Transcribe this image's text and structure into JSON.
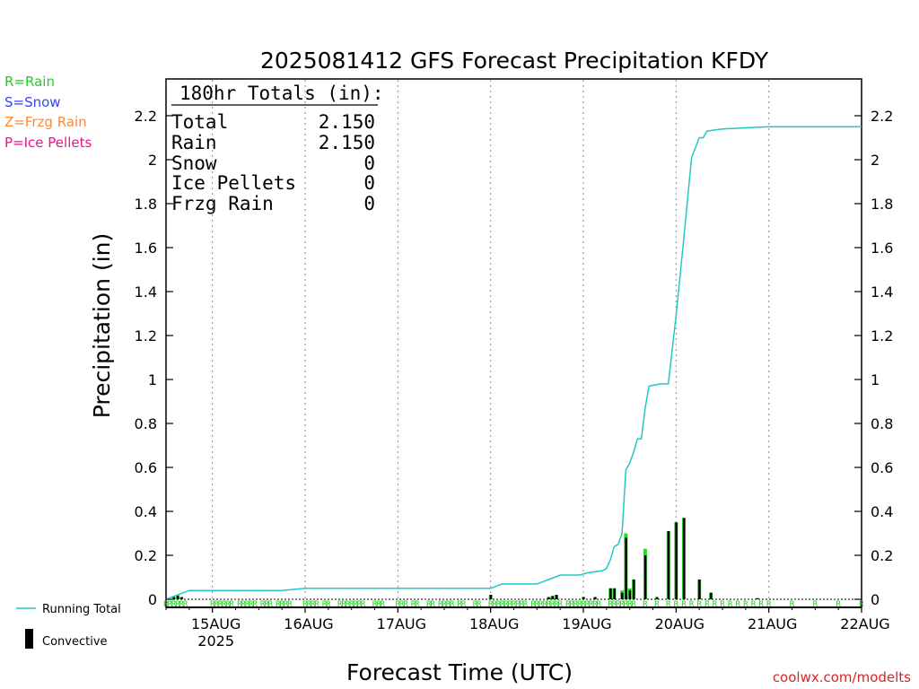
{
  "chart_data": {
    "type": "bar",
    "title": "2025081412 GFS Forecast Precipitation KFDY",
    "ylabel": "Precipitation (in)",
    "xlabel": "Forecast Time (UTC)",
    "ylim": [
      0,
      2.35
    ],
    "yticks": [
      0,
      0.2,
      0.4,
      0.6,
      0.8,
      1,
      1.2,
      1.4,
      1.6,
      1.8,
      2,
      2.2
    ],
    "ytick_labels": [
      "0",
      "0.2",
      "0.4",
      "0.6",
      "0.8",
      "1",
      "1.2",
      "1.4",
      "1.6",
      "1.8",
      "2",
      "2.2"
    ],
    "xlim": [
      "2025-08-14T12Z",
      "2025-08-22T00Z"
    ],
    "xticks": [
      {
        "date": "2025-08-15T00Z",
        "label": "15AUG",
        "sublabel": "2025"
      },
      {
        "date": "2025-08-16T00Z",
        "label": "16AUG"
      },
      {
        "date": "2025-08-17T00Z",
        "label": "17AUG"
      },
      {
        "date": "2025-08-18T00Z",
        "label": "18AUG"
      },
      {
        "date": "2025-08-19T00Z",
        "label": "19AUG"
      },
      {
        "date": "2025-08-20T00Z",
        "label": "20AUG"
      },
      {
        "date": "2025-08-21T00Z",
        "label": "21AUG"
      },
      {
        "date": "2025-08-22T00Z",
        "label": "22AUG"
      }
    ],
    "totals_box": {
      "header": "180hr Totals (in):",
      "rows": [
        {
          "label": "Total",
          "value": "2.150"
        },
        {
          "label": "Rain",
          "value": "2.150"
        },
        {
          "label": "Snow",
          "value": "0"
        },
        {
          "label": "Ice Pellets",
          "value": "0"
        },
        {
          "label": "Frzg Rain",
          "value": "0"
        }
      ]
    },
    "precip_type_legend": [
      {
        "text": "R=Rain",
        "color": "#22cc22"
      },
      {
        "text": "S=Snow",
        "color": "#3344ff"
      },
      {
        "text": "Z=Frzg Rain",
        "color": "#ff8833"
      },
      {
        "text": "P=Ice Pellets",
        "color": "#ee1188"
      }
    ],
    "series_legend": [
      {
        "text": "Running Total",
        "color": "#22c8c8",
        "kind": "line"
      },
      {
        "text": "Convective",
        "color": "#000000",
        "kind": "bar"
      }
    ],
    "credit": "coolwx.com/modelts",
    "colors": {
      "running_total": "#22c8c8",
      "rain_bar": "#22dd22",
      "convective_bar": "#000000",
      "type_marker": "#22cc22"
    },
    "running_total": [
      [
        "2025-08-14T12Z",
        0.0
      ],
      [
        "2025-08-14T15Z",
        0.02
      ],
      [
        "2025-08-14T18Z",
        0.04
      ],
      [
        "2025-08-15T18Z",
        0.04
      ],
      [
        "2025-08-16T00Z",
        0.05
      ],
      [
        "2025-08-17T00Z",
        0.05
      ],
      [
        "2025-08-17T21Z",
        0.05
      ],
      [
        "2025-08-18T00Z",
        0.05
      ],
      [
        "2025-08-18T03Z",
        0.07
      ],
      [
        "2025-08-18T12Z",
        0.07
      ],
      [
        "2025-08-18T15Z",
        0.09
      ],
      [
        "2025-08-18T18Z",
        0.11
      ],
      [
        "2025-08-18T23Z",
        0.11
      ],
      [
        "2025-08-19T01Z",
        0.12
      ],
      [
        "2025-08-19T05Z",
        0.13
      ],
      [
        "2025-08-19T06Z",
        0.14
      ],
      [
        "2025-08-19T07Z",
        0.18
      ],
      [
        "2025-08-19T08Z",
        0.24
      ],
      [
        "2025-08-19T09Z",
        0.25
      ],
      [
        "2025-08-19T10Z",
        0.3
      ],
      [
        "2025-08-19T11Z",
        0.59
      ],
      [
        "2025-08-19T12Z",
        0.62
      ],
      [
        "2025-08-19T13Z",
        0.67
      ],
      [
        "2025-08-19T14Z",
        0.73
      ],
      [
        "2025-08-19T15Z",
        0.73
      ],
      [
        "2025-08-19T16Z",
        0.87
      ],
      [
        "2025-08-19T17Z",
        0.97
      ],
      [
        "2025-08-19T20Z",
        0.98
      ],
      [
        "2025-08-19T22Z",
        0.98
      ],
      [
        "2025-08-20T00Z",
        1.29
      ],
      [
        "2025-08-20T02Z",
        1.64
      ],
      [
        "2025-08-20T04Z",
        2.01
      ],
      [
        "2025-08-20T06Z",
        2.1
      ],
      [
        "2025-08-20T07Z",
        2.1
      ],
      [
        "2025-08-20T08Z",
        2.13
      ],
      [
        "2025-08-20T12Z",
        2.14
      ],
      [
        "2025-08-21T00Z",
        2.15
      ],
      [
        "2025-08-22T00Z",
        2.15
      ]
    ],
    "bars": [
      {
        "t": "2025-08-14T14Z",
        "total": 0.01,
        "convective": 0.01
      },
      {
        "t": "2025-08-14T15Z",
        "total": 0.02,
        "convective": 0.015
      },
      {
        "t": "2025-08-14T16Z",
        "total": 0.01,
        "convective": 0.01
      },
      {
        "t": "2025-08-18T00Z",
        "total": 0.02,
        "convective": 0.02
      },
      {
        "t": "2025-08-18T15Z",
        "total": 0.01,
        "convective": 0.01
      },
      {
        "t": "2025-08-18T16Z",
        "total": 0.015,
        "convective": 0.015
      },
      {
        "t": "2025-08-18T17Z",
        "total": 0.02,
        "convective": 0.02
      },
      {
        "t": "2025-08-19T00Z",
        "total": 0.01,
        "convective": 0.01
      },
      {
        "t": "2025-08-19T03Z",
        "total": 0.01,
        "convective": 0.01
      },
      {
        "t": "2025-08-19T07Z",
        "total": 0.05,
        "convective": 0.05
      },
      {
        "t": "2025-08-19T08Z",
        "total": 0.05,
        "convective": 0.05
      },
      {
        "t": "2025-08-19T10Z",
        "total": 0.04,
        "convective": 0.03
      },
      {
        "t": "2025-08-19T11Z",
        "total": 0.3,
        "convective": 0.28
      },
      {
        "t": "2025-08-19T12Z",
        "total": 0.05,
        "convective": 0.04
      },
      {
        "t": "2025-08-19T13Z",
        "total": 0.09,
        "convective": 0.09
      },
      {
        "t": "2025-08-19T16Z",
        "total": 0.23,
        "convective": 0.2
      },
      {
        "t": "2025-08-19T19Z",
        "total": 0.01,
        "convective": 0.01
      },
      {
        "t": "2025-08-19T22Z",
        "total": 0.31,
        "convective": 0.31
      },
      {
        "t": "2025-08-20T00Z",
        "total": 0.35,
        "convective": 0.35
      },
      {
        "t": "2025-08-20T02Z",
        "total": 0.37,
        "convective": 0.37
      },
      {
        "t": "2025-08-20T06Z",
        "total": 0.09,
        "convective": 0.09
      },
      {
        "t": "2025-08-20T09Z",
        "total": 0.03,
        "convective": 0.03
      },
      {
        "t": "2025-08-20T21Z",
        "total": 0.005,
        "convective": 0.005
      }
    ],
    "type_markers": {
      "letter": "R",
      "times": [
        "2025-08-14T12Z",
        "2025-08-14T13Z",
        "2025-08-14T14Z",
        "2025-08-14T15Z",
        "2025-08-14T16Z",
        "2025-08-14T17Z",
        "2025-08-15T00Z",
        "2025-08-15T01Z",
        "2025-08-15T02Z",
        "2025-08-15T03Z",
        "2025-08-15T04Z",
        "2025-08-15T05Z",
        "2025-08-15T07Z",
        "2025-08-15T08Z",
        "2025-08-15T09Z",
        "2025-08-15T10Z",
        "2025-08-15T11Z",
        "2025-08-15T13Z",
        "2025-08-15T14Z",
        "2025-08-15T15Z",
        "2025-08-15T17Z",
        "2025-08-15T18Z",
        "2025-08-15T19Z",
        "2025-08-15T20Z",
        "2025-08-16T00Z",
        "2025-08-16T01Z",
        "2025-08-16T02Z",
        "2025-08-16T03Z",
        "2025-08-16T05Z",
        "2025-08-16T06Z",
        "2025-08-16T09Z",
        "2025-08-16T10Z",
        "2025-08-16T11Z",
        "2025-08-16T12Z",
        "2025-08-16T13Z",
        "2025-08-16T14Z",
        "2025-08-16T15Z",
        "2025-08-16T18Z",
        "2025-08-16T19Z",
        "2025-08-16T20Z",
        "2025-08-17T00Z",
        "2025-08-17T01Z",
        "2025-08-17T02Z",
        "2025-08-17T04Z",
        "2025-08-17T05Z",
        "2025-08-17T08Z",
        "2025-08-17T09Z",
        "2025-08-17T11Z",
        "2025-08-17T12Z",
        "2025-08-17T13Z",
        "2025-08-17T14Z",
        "2025-08-17T16Z",
        "2025-08-17T17Z",
        "2025-08-17T20Z",
        "2025-08-17T21Z",
        "2025-08-18T00Z",
        "2025-08-18T01Z",
        "2025-08-18T02Z",
        "2025-08-18T03Z",
        "2025-08-18T04Z",
        "2025-08-18T05Z",
        "2025-08-18T06Z",
        "2025-08-18T07Z",
        "2025-08-18T08Z",
        "2025-08-18T09Z",
        "2025-08-18T11Z",
        "2025-08-18T12Z",
        "2025-08-18T13Z",
        "2025-08-18T14Z",
        "2025-08-18T15Z",
        "2025-08-18T16Z",
        "2025-08-18T17Z",
        "2025-08-18T18Z",
        "2025-08-18T20Z",
        "2025-08-18T21Z",
        "2025-08-18T22Z",
        "2025-08-18T23Z",
        "2025-08-19T00Z",
        "2025-08-19T01Z",
        "2025-08-19T02Z",
        "2025-08-19T03Z",
        "2025-08-19T04Z",
        "2025-08-19T07Z",
        "2025-08-19T08Z",
        "2025-08-19T09Z",
        "2025-08-19T10Z",
        "2025-08-19T11Z",
        "2025-08-19T12Z",
        "2025-08-19T13Z",
        "2025-08-19T16Z",
        "2025-08-19T19Z",
        "2025-08-19T22Z",
        "2025-08-20T00Z",
        "2025-08-20T02Z",
        "2025-08-20T04Z",
        "2025-08-20T06Z",
        "2025-08-20T08Z",
        "2025-08-20T10Z",
        "2025-08-20T12Z",
        "2025-08-20T14Z",
        "2025-08-20T16Z",
        "2025-08-20T18Z",
        "2025-08-20T20Z",
        "2025-08-20T22Z",
        "2025-08-21T00Z",
        "2025-08-21T06Z",
        "2025-08-21T12Z",
        "2025-08-21T18Z",
        "2025-08-22T00Z"
      ]
    }
  }
}
